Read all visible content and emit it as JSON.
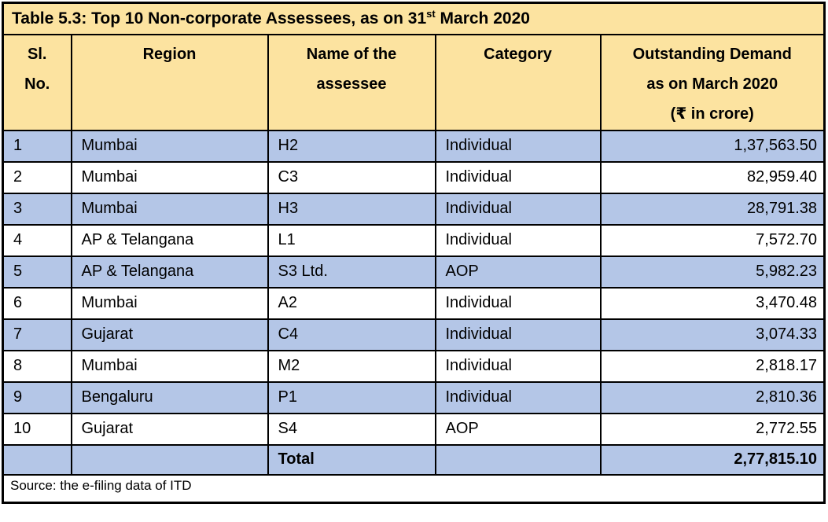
{
  "colors": {
    "header_bg": "#FCE3A0",
    "row_shaded_bg": "#B4C6E7",
    "border": "#000000"
  },
  "table": {
    "title": {
      "prefix": "Table 5.3: Top 10 Non-corporate Assessees, as on 31",
      "superscript": "st",
      "suffix": " March 2020"
    },
    "columns": [
      {
        "id": "sl",
        "lines": [
          "Sl.",
          "No."
        ]
      },
      {
        "id": "region",
        "lines": [
          "Region"
        ]
      },
      {
        "id": "name",
        "lines": [
          "Name of the",
          "assessee"
        ]
      },
      {
        "id": "category",
        "lines": [
          "Category"
        ]
      },
      {
        "id": "demand",
        "lines": [
          "Outstanding Demand",
          "as on March 2020",
          "(₹ in crore)"
        ]
      }
    ],
    "rows": [
      {
        "sl": "1",
        "region": "Mumbai",
        "name": "H2",
        "category": "Individual",
        "demand": "1,37,563.50",
        "shaded": true
      },
      {
        "sl": "2",
        "region": "Mumbai",
        "name": "C3",
        "category": "Individual",
        "demand": "82,959.40",
        "shaded": false
      },
      {
        "sl": "3",
        "region": "Mumbai",
        "name": "H3",
        "category": "Individual",
        "demand": "28,791.38",
        "shaded": true
      },
      {
        "sl": "4",
        "region": "AP & Telangana",
        "name": "L1",
        "category": "Individual",
        "demand": "7,572.70",
        "shaded": false
      },
      {
        "sl": "5",
        "region": "AP & Telangana",
        "name": "S3 Ltd.",
        "category": "AOP",
        "demand": "5,982.23",
        "shaded": true
      },
      {
        "sl": "6",
        "region": "Mumbai",
        "name": "A2",
        "category": "Individual",
        "demand": "3,470.48",
        "shaded": false
      },
      {
        "sl": "7",
        "region": "Gujarat",
        "name": "C4",
        "category": "Individual",
        "demand": "3,074.33",
        "shaded": true
      },
      {
        "sl": "8",
        "region": "Mumbai",
        "name": "M2",
        "category": "Individual",
        "demand": "2,818.17",
        "shaded": false
      },
      {
        "sl": "9",
        "region": "Bengaluru",
        "name": "P1",
        "category": "Individual",
        "demand": "2,810.36",
        "shaded": true
      },
      {
        "sl": "10",
        "region": "Gujarat",
        "name": "S4",
        "category": "AOP",
        "demand": "2,772.55",
        "shaded": false
      }
    ],
    "total": {
      "label": "Total",
      "value": "2,77,815.10"
    },
    "source": "Source: the e-filing data of ITD"
  }
}
